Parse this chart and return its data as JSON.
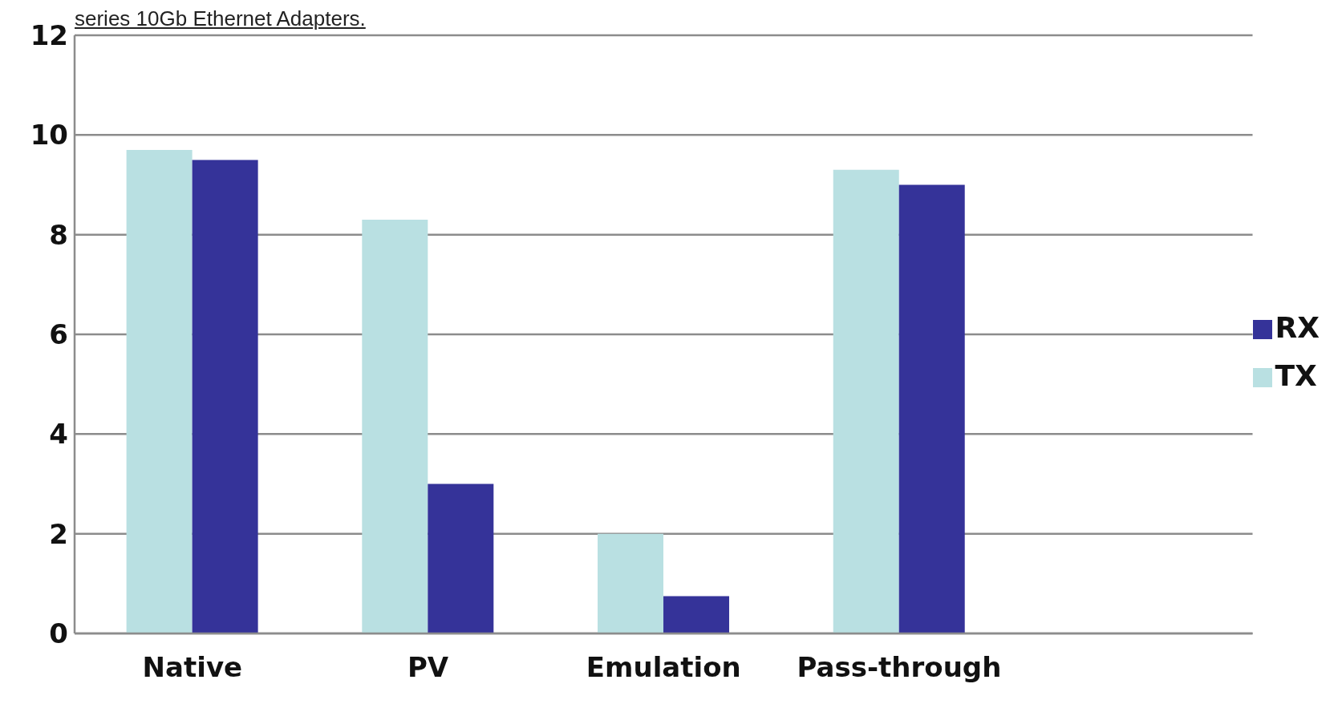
{
  "chart_data": {
    "type": "bar",
    "title": "series 10Gb Ethernet Adapters.",
    "categories": [
      "Native",
      "PV",
      "Emulation",
      "Pass-through",
      null
    ],
    "series": [
      {
        "name": "TX",
        "color": "#b9e0e2",
        "values": [
          9.7,
          8.3,
          2.0,
          9.3,
          null
        ]
      },
      {
        "name": "RX",
        "color": "#353399",
        "values": [
          9.5,
          3.0,
          0.75,
          9.0,
          null
        ]
      }
    ],
    "ylim": [
      0,
      12
    ],
    "yticks": [
      0,
      2,
      4,
      6,
      8,
      10,
      12
    ],
    "grid": "y",
    "legend": "right"
  }
}
